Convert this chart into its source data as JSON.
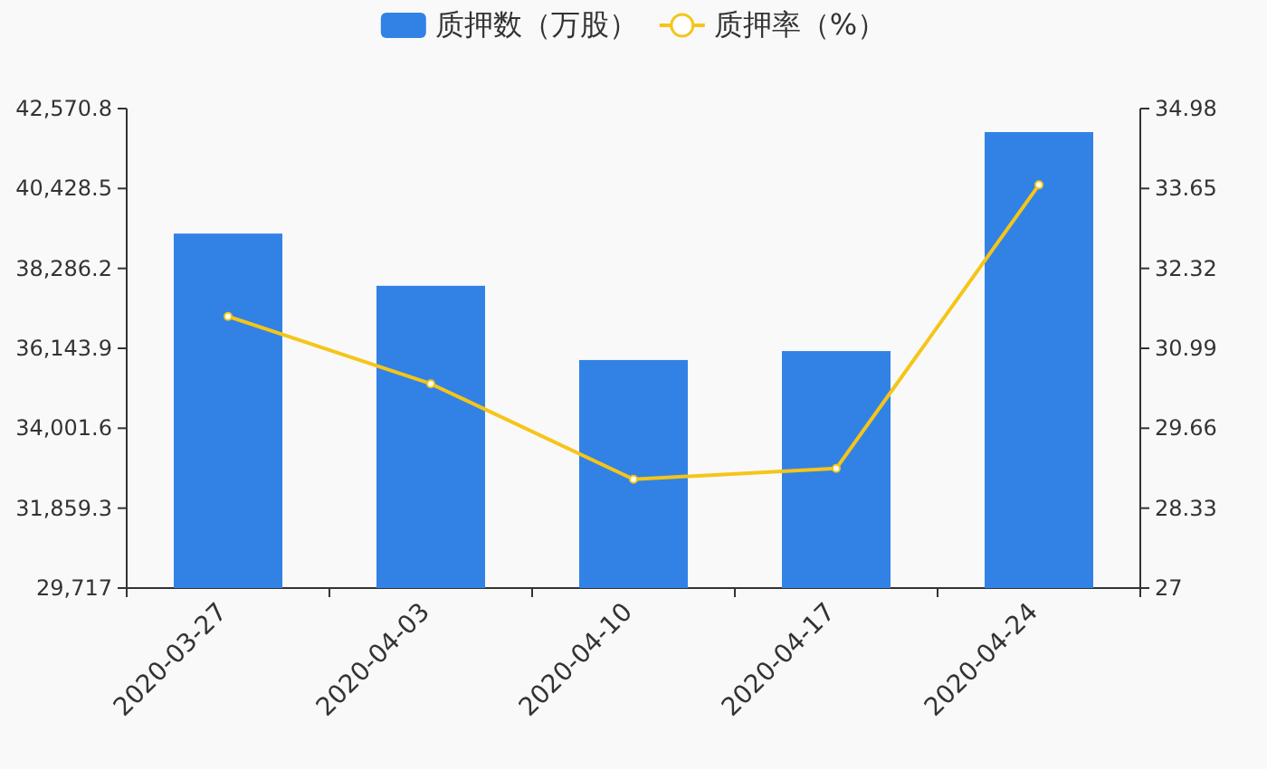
{
  "chart_data": {
    "type": "bar",
    "categories": [
      "2020-03-27",
      "2020-04-03",
      "2020-04-10",
      "2020-04-17",
      "2020-04-24"
    ],
    "series": [
      {
        "name": "质押数（万股）",
        "color": "#3282e6",
        "values": [
          39220,
          37820,
          35830,
          36070,
          41940
        ]
      },
      {
        "name": "质押率（%）",
        "type": "line",
        "axis": "y2",
        "color": "#f5c518",
        "marker": "circle",
        "values": [
          31.52,
          30.4,
          28.81,
          28.99,
          33.71
        ]
      }
    ],
    "ylim": [
      29717,
      42570.8
    ],
    "yticks": [
      {
        "value": 29717,
        "label": "29,717"
      },
      {
        "value": 31859.3,
        "label": "31,859.3"
      },
      {
        "value": 34001.6,
        "label": "34,001.6"
      },
      {
        "value": 36143.9,
        "label": "36,143.9"
      },
      {
        "value": 38286.2,
        "label": "38,286.2"
      },
      {
        "value": 40428.5,
        "label": "40,428.5"
      },
      {
        "value": 42570.8,
        "label": "42,570.8"
      }
    ],
    "y2lim": [
      27,
      34.98
    ],
    "y2ticks": [
      27,
      28.33,
      29.66,
      30.99,
      32.32,
      33.65,
      34.98
    ],
    "legend": "top",
    "grid": false
  }
}
